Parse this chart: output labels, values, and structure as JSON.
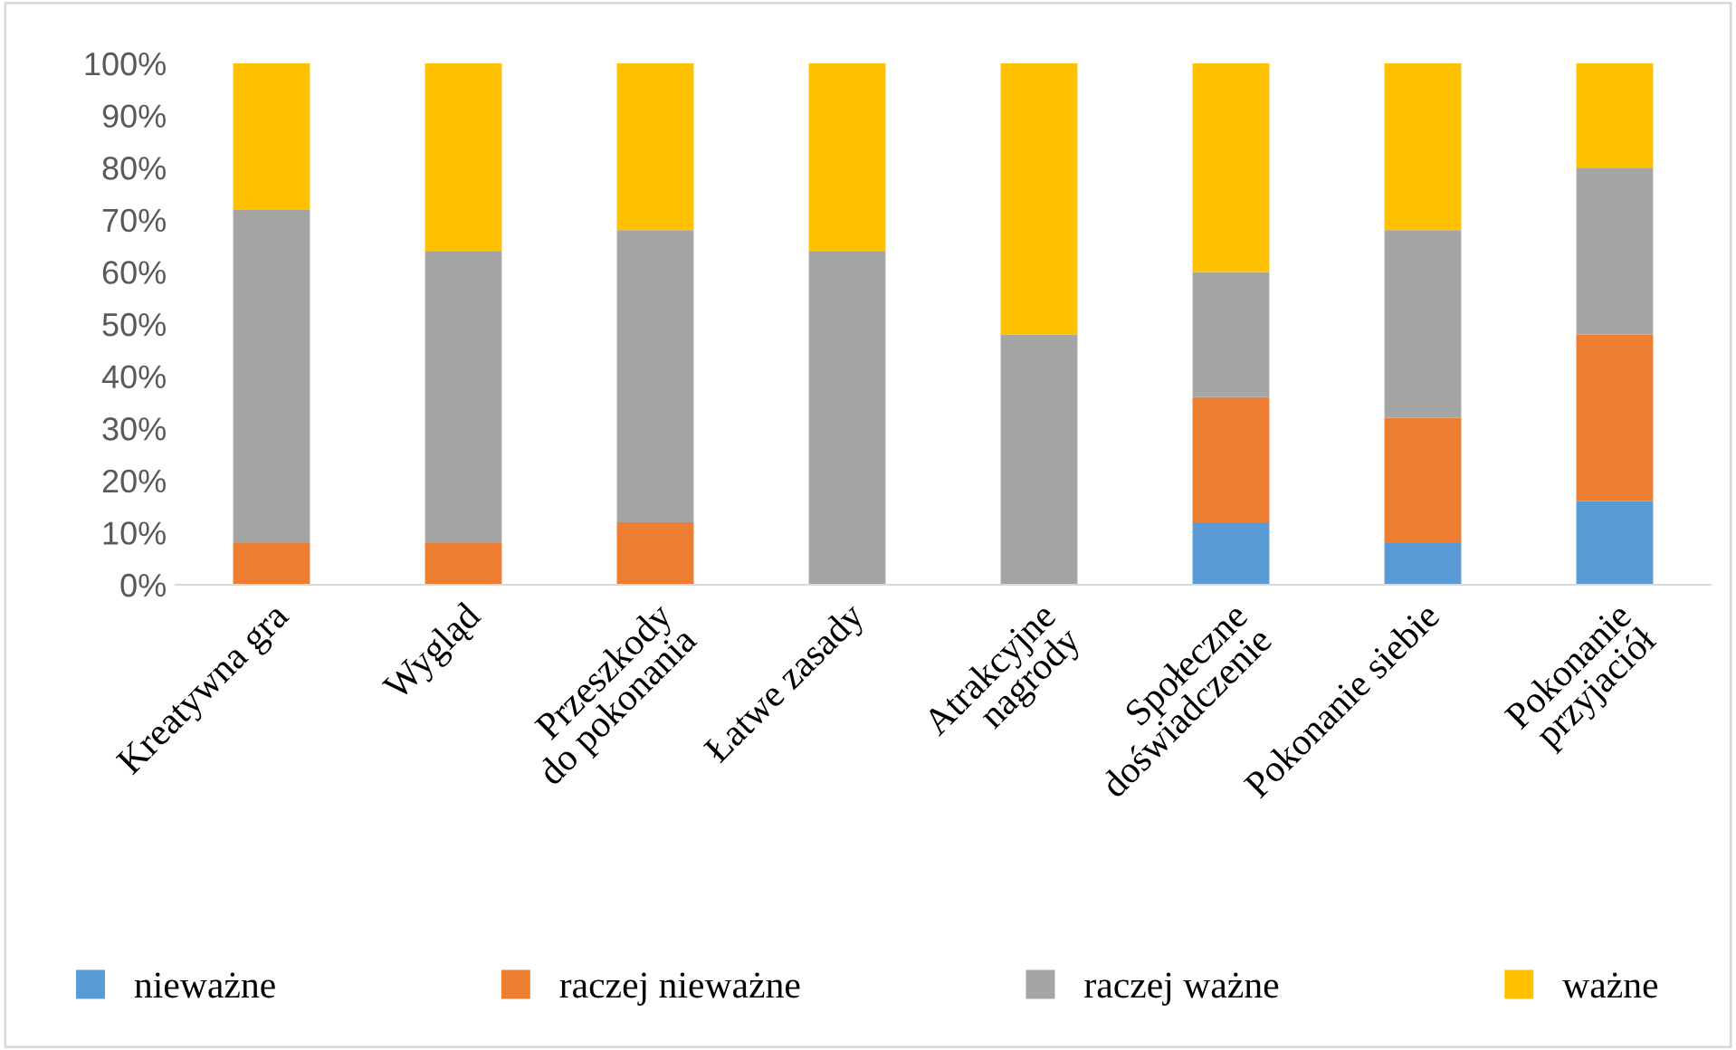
{
  "chart_data": {
    "type": "bar",
    "stacked": true,
    "categories": [
      "Kreatywna gra",
      "Wygląd",
      "Przeszkody\ndo pokonania",
      "Łatwe zasady",
      "Atrakcyjne\nnagrody",
      "Społeczne\ndoświadczenie",
      "Pokonanie siebie",
      "Pokonanie\nprzyjaciół"
    ],
    "series": [
      {
        "name": "nieważne",
        "color": "#5b9bd5",
        "values": [
          0,
          0,
          0,
          0,
          0,
          12,
          8,
          16
        ]
      },
      {
        "name": "raczej nieważne",
        "color": "#ed7d31",
        "values": [
          8,
          8,
          12,
          0,
          0,
          24,
          24,
          32
        ]
      },
      {
        "name": "raczej ważne",
        "color": "#a5a5a5",
        "values": [
          64,
          56,
          56,
          64,
          48,
          24,
          36,
          32
        ]
      },
      {
        "name": "ważne",
        "color": "#ffc000",
        "values": [
          28,
          36,
          32,
          36,
          52,
          40,
          32,
          20
        ]
      }
    ],
    "ylim": [
      0,
      100
    ],
    "yticks": [
      {
        "value": 0,
        "label": "0%"
      },
      {
        "value": 10,
        "label": "10%"
      },
      {
        "value": 20,
        "label": "20%"
      },
      {
        "value": 30,
        "label": "30%"
      },
      {
        "value": 40,
        "label": "40%"
      },
      {
        "value": 50,
        "label": "50%"
      },
      {
        "value": 60,
        "label": "60%"
      },
      {
        "value": 70,
        "label": "70%"
      },
      {
        "value": 80,
        "label": "80%"
      },
      {
        "value": 90,
        "label": "90%"
      },
      {
        "value": 100,
        "label": "100%"
      }
    ],
    "legend": "bottom",
    "grid": false
  }
}
